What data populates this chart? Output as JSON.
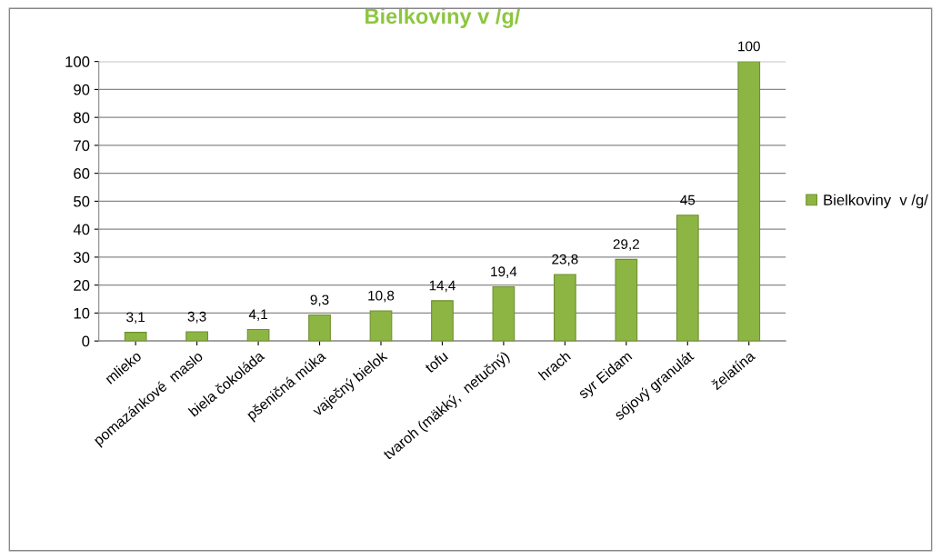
{
  "chart_data": {
    "type": "bar",
    "title": "Bielkoviny v /g/",
    "categories": [
      "mlieko",
      "pomazánkové  maslo",
      "biela čokoláda",
      "pšeničná múka",
      "vaječný bielok",
      "tofu",
      "tvaroh (mäkký,  netučný)",
      "hrach",
      "syr Eidam",
      "sójový granulát",
      "želatína"
    ],
    "series": [
      {
        "name": "Bielkoviny  v /g/",
        "color": "#8db543",
        "values": [
          3.1,
          3.3,
          4.1,
          9.3,
          10.8,
          14.4,
          19.4,
          23.8,
          29.2,
          45,
          100
        ],
        "value_labels": [
          "3,1",
          "3,3",
          "4,1",
          "9,3",
          "10,8",
          "14,4",
          "19,4",
          "23,8",
          "29,2",
          "45",
          "100"
        ]
      }
    ],
    "ylim": [
      0,
      100
    ],
    "yticks": [
      0,
      10,
      20,
      30,
      40,
      50,
      60,
      70,
      80,
      90,
      100
    ],
    "grid": "y",
    "legend": "right"
  }
}
